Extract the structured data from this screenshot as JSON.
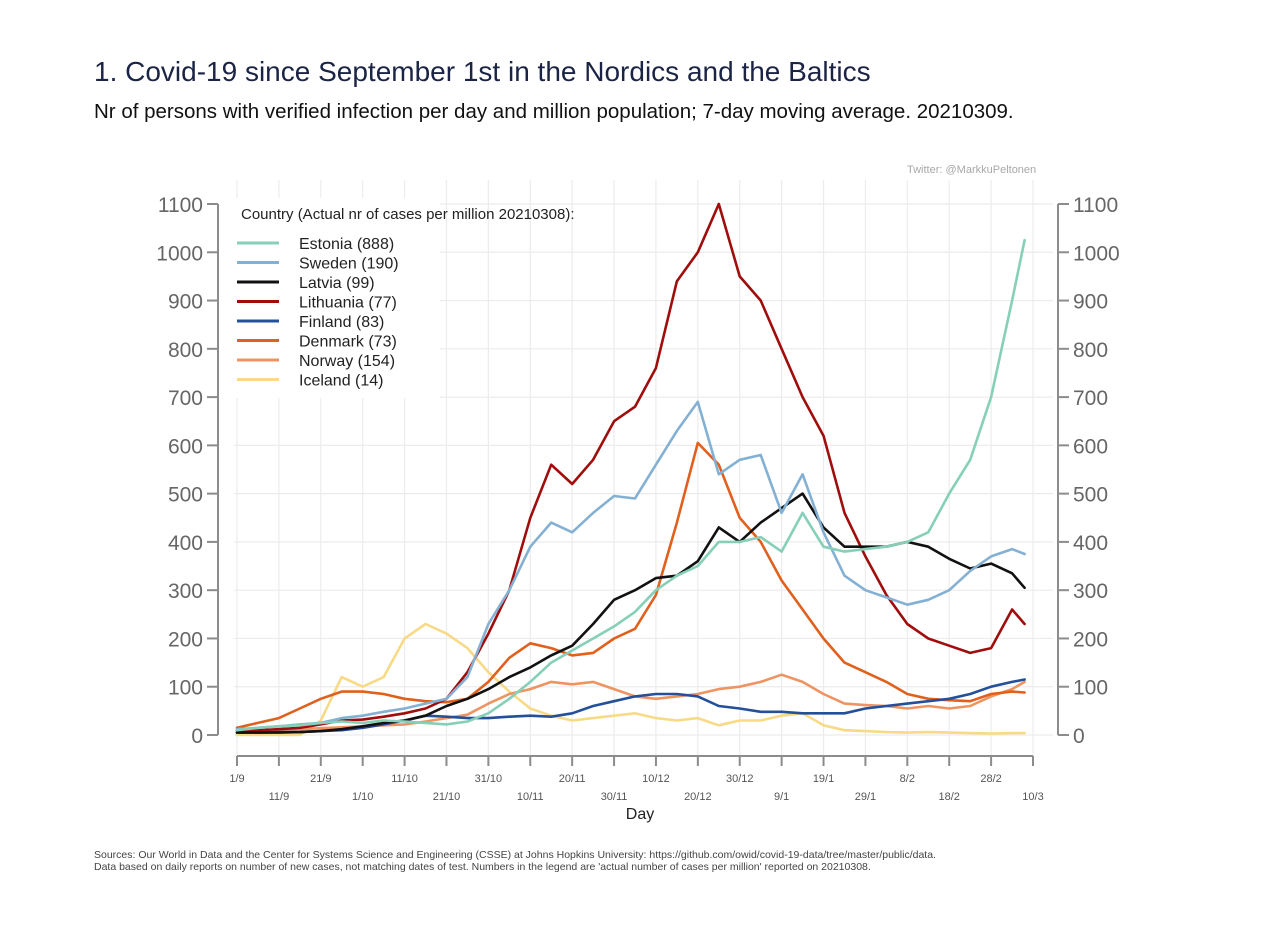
{
  "header": {
    "title": "1. Covid-19 since September 1st in the Nordics and the Baltics",
    "subtitle": "Nr of persons with verified infection per day and million population; 7-day moving average. 20210309.",
    "credit": "Twitter: @MarkkuPeltonen"
  },
  "footer": {
    "line1": "Sources: Our World in Data and the Center for Systems Science and Engineering (CSSE) at Johns Hopkins University: https://github.com/owid/covid-19-data/tree/master/public/data.",
    "line2": "Data based on daily reports on number of new cases, not matching dates of test. Numbers in the legend are 'actual number of cases per million' reported on 20210308."
  },
  "chart_data": {
    "type": "line",
    "title": "1. Covid-19 since September 1st in the Nordics and the Baltics",
    "subtitle": "Nr of persons with verified infection per day and million population; 7-day moving average. 20210309.",
    "xlabel": "Day",
    "ylabel": "",
    "ylim": [
      0,
      1100
    ],
    "yticks": [
      0,
      100,
      200,
      300,
      400,
      500,
      600,
      700,
      800,
      900,
      1000,
      1100
    ],
    "xlim_days": [
      0,
      190
    ],
    "xticks": [
      {
        "day": 0,
        "label": "1/9",
        "row": 0
      },
      {
        "day": 10,
        "label": "11/9",
        "row": 1
      },
      {
        "day": 20,
        "label": "21/9",
        "row": 0
      },
      {
        "day": 30,
        "label": "1/10",
        "row": 1
      },
      {
        "day": 40,
        "label": "11/10",
        "row": 0
      },
      {
        "day": 50,
        "label": "21/10",
        "row": 1
      },
      {
        "day": 60,
        "label": "31/10",
        "row": 0
      },
      {
        "day": 70,
        "label": "10/11",
        "row": 1
      },
      {
        "day": 80,
        "label": "20/11",
        "row": 0
      },
      {
        "day": 90,
        "label": "30/11",
        "row": 1
      },
      {
        "day": 100,
        "label": "10/12",
        "row": 0
      },
      {
        "day": 110,
        "label": "20/12",
        "row": 1
      },
      {
        "day": 120,
        "label": "30/12",
        "row": 0
      },
      {
        "day": 130,
        "label": "9/1",
        "row": 1
      },
      {
        "day": 140,
        "label": "19/1",
        "row": 0
      },
      {
        "day": 150,
        "label": "29/1",
        "row": 1
      },
      {
        "day": 160,
        "label": "8/2",
        "row": 0
      },
      {
        "day": 170,
        "label": "18/2",
        "row": 1
      },
      {
        "day": 180,
        "label": "28/2",
        "row": 0
      },
      {
        "day": 190,
        "label": "10/3",
        "row": 1
      }
    ],
    "grid": true,
    "legend_position": "top-left",
    "legend_title": "Country (Actual nr of cases per million 20210308):",
    "x_days": [
      0,
      5,
      10,
      15,
      20,
      25,
      30,
      35,
      40,
      45,
      50,
      55,
      60,
      65,
      70,
      75,
      80,
      85,
      90,
      95,
      100,
      105,
      110,
      115,
      120,
      125,
      130,
      135,
      140,
      145,
      150,
      155,
      160,
      165,
      170,
      175,
      180,
      185,
      188
    ],
    "series": [
      {
        "name": "Estonia",
        "legend": "Estonia (888)",
        "color": "#86cfb8",
        "values": [
          10,
          15,
          18,
          20,
          25,
          28,
          25,
          30,
          28,
          25,
          22,
          28,
          45,
          75,
          110,
          150,
          175,
          200,
          225,
          255,
          300,
          330,
          350,
          400,
          400,
          410,
          380,
          460,
          390,
          380,
          385,
          390,
          400,
          420,
          500,
          570,
          700,
          900,
          1025
        ]
      },
      {
        "name": "Sweden",
        "legend": "Sweden (190)",
        "color": "#84b1d3",
        "values": [
          12,
          15,
          18,
          22,
          25,
          35,
          40,
          48,
          55,
          65,
          75,
          120,
          230,
          300,
          390,
          440,
          420,
          460,
          495,
          490,
          560,
          630,
          690,
          540,
          570,
          580,
          460,
          540,
          420,
          330,
          300,
          285,
          270,
          280,
          300,
          340,
          370,
          385,
          375
        ]
      },
      {
        "name": "Latvia",
        "legend": "Latvia (99)",
        "color": "#111111",
        "values": [
          5,
          5,
          5,
          6,
          8,
          12,
          18,
          25,
          30,
          40,
          60,
          75,
          95,
          120,
          140,
          165,
          185,
          230,
          280,
          300,
          325,
          330,
          360,
          430,
          400,
          440,
          470,
          500,
          430,
          390,
          390,
          390,
          400,
          390,
          365,
          345,
          355,
          335,
          305
        ]
      },
      {
        "name": "Lithuania",
        "legend": "Lithuania (77)",
        "color": "#a00d0d",
        "values": [
          10,
          10,
          12,
          15,
          22,
          30,
          32,
          38,
          45,
          55,
          75,
          130,
          210,
          300,
          450,
          560,
          520,
          570,
          650,
          680,
          760,
          940,
          1000,
          1100,
          950,
          900,
          800,
          700,
          620,
          460,
          370,
          290,
          230,
          200,
          185,
          170,
          180,
          260,
          230
        ]
      },
      {
        "name": "Finland",
        "legend": "Finland (83)",
        "color": "#24509a",
        "values": [
          5,
          5,
          6,
          6,
          8,
          10,
          15,
          22,
          30,
          40,
          38,
          35,
          35,
          38,
          40,
          38,
          45,
          60,
          70,
          80,
          85,
          85,
          80,
          60,
          55,
          48,
          48,
          45,
          45,
          45,
          55,
          60,
          65,
          70,
          75,
          85,
          100,
          110,
          115
        ]
      },
      {
        "name": "Denmark",
        "legend": "Denmark (73)",
        "color": "#e0601e",
        "values": [
          15,
          25,
          35,
          55,
          75,
          90,
          90,
          85,
          75,
          70,
          68,
          75,
          110,
          160,
          190,
          180,
          165,
          170,
          200,
          220,
          290,
          440,
          605,
          560,
          450,
          400,
          320,
          260,
          200,
          150,
          130,
          110,
          85,
          75,
          72,
          70,
          85,
          90,
          88
        ]
      },
      {
        "name": "Norway",
        "legend": "Norway (154)",
        "color": "#ee9462",
        "values": [
          8,
          8,
          10,
          12,
          14,
          16,
          18,
          20,
          22,
          28,
          35,
          42,
          65,
          85,
          95,
          110,
          105,
          110,
          95,
          80,
          75,
          80,
          85,
          95,
          100,
          110,
          125,
          110,
          85,
          65,
          62,
          60,
          55,
          60,
          55,
          60,
          80,
          95,
          110
        ]
      },
      {
        "name": "Iceland",
        "legend": "Iceland (14)",
        "color": "#f8da86",
        "values": [
          0,
          0,
          0,
          0,
          30,
          120,
          100,
          120,
          200,
          230,
          210,
          180,
          130,
          90,
          55,
          40,
          30,
          35,
          40,
          45,
          35,
          30,
          35,
          20,
          30,
          30,
          40,
          45,
          20,
          10,
          8,
          6,
          5,
          6,
          5,
          4,
          3,
          4,
          4
        ]
      }
    ]
  }
}
